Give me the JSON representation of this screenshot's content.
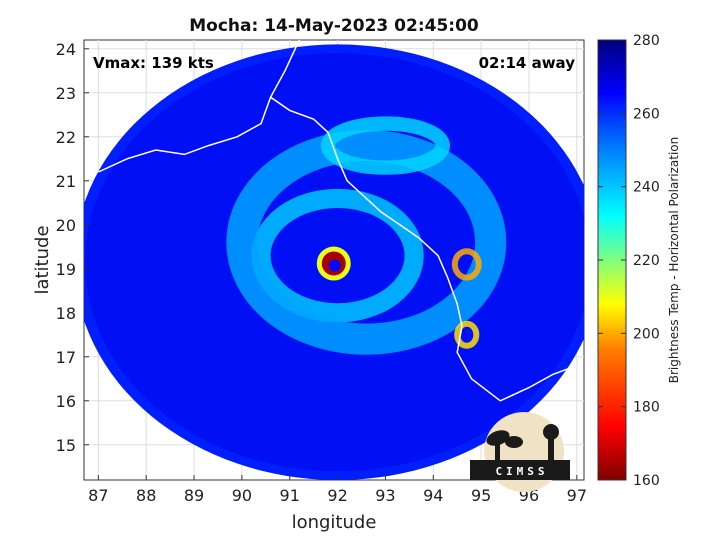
{
  "chart_data": {
    "type": "heatmap",
    "title": "Mocha: 14-May-2023 02:45:00",
    "xlabel": "longitude",
    "ylabel": "latitude",
    "xlim": [
      86.7,
      97.15
    ],
    "ylim": [
      14.2,
      24.2
    ],
    "x_ticks": [
      87,
      88,
      89,
      90,
      91,
      92,
      93,
      94,
      95,
      96,
      97
    ],
    "y_ticks": [
      15,
      16,
      17,
      18,
      19,
      20,
      21,
      22,
      23,
      24
    ],
    "grid": true,
    "annotation_left": "Vmax: 139 kts",
    "annotation_right": "02:14 away",
    "colorbar": {
      "label": "Brightness Temp - Horizontal Polarization",
      "min": 160,
      "max": 280,
      "ticks": [
        160,
        180,
        200,
        220,
        240,
        260,
        280
      ],
      "colormap": [
        "#7f0000",
        "#ff0000",
        "#ff8000",
        "#ffff00",
        "#80ff80",
        "#00ffff",
        "#0080ff",
        "#0000ff",
        "#00007f"
      ]
    },
    "swath": {
      "center_lon": 92.0,
      "center_lat": 19.15,
      "radius_lon": 5.5,
      "radius_lat": 4.95
    },
    "eye": {
      "lon": 91.92,
      "lat": 19.12,
      "eyewall_tb": 165,
      "eye_tb": 265
    },
    "background_tb": 262,
    "features": [
      {
        "name": "inner-band",
        "lon": 92.0,
        "lat": 19.3,
        "rlon": 1.6,
        "rlat": 1.3,
        "tb": 240
      },
      {
        "name": "outer-band",
        "lon": 92.6,
        "lat": 19.6,
        "rlon": 2.6,
        "rlat": 2.2,
        "tb": 245
      },
      {
        "name": "northeast-convection",
        "lon": 94.7,
        "lat": 19.1,
        "rlon": 0.25,
        "rlat": 0.3,
        "tb": 200
      },
      {
        "name": "southeast-convection",
        "lon": 94.7,
        "lat": 17.5,
        "rlon": 0.2,
        "rlat": 0.25,
        "tb": 205
      },
      {
        "name": "north-band",
        "lon": 93.0,
        "lat": 21.8,
        "rlon": 1.2,
        "rlat": 0.5,
        "tb": 238
      }
    ],
    "logo_text": "CIMSS"
  }
}
